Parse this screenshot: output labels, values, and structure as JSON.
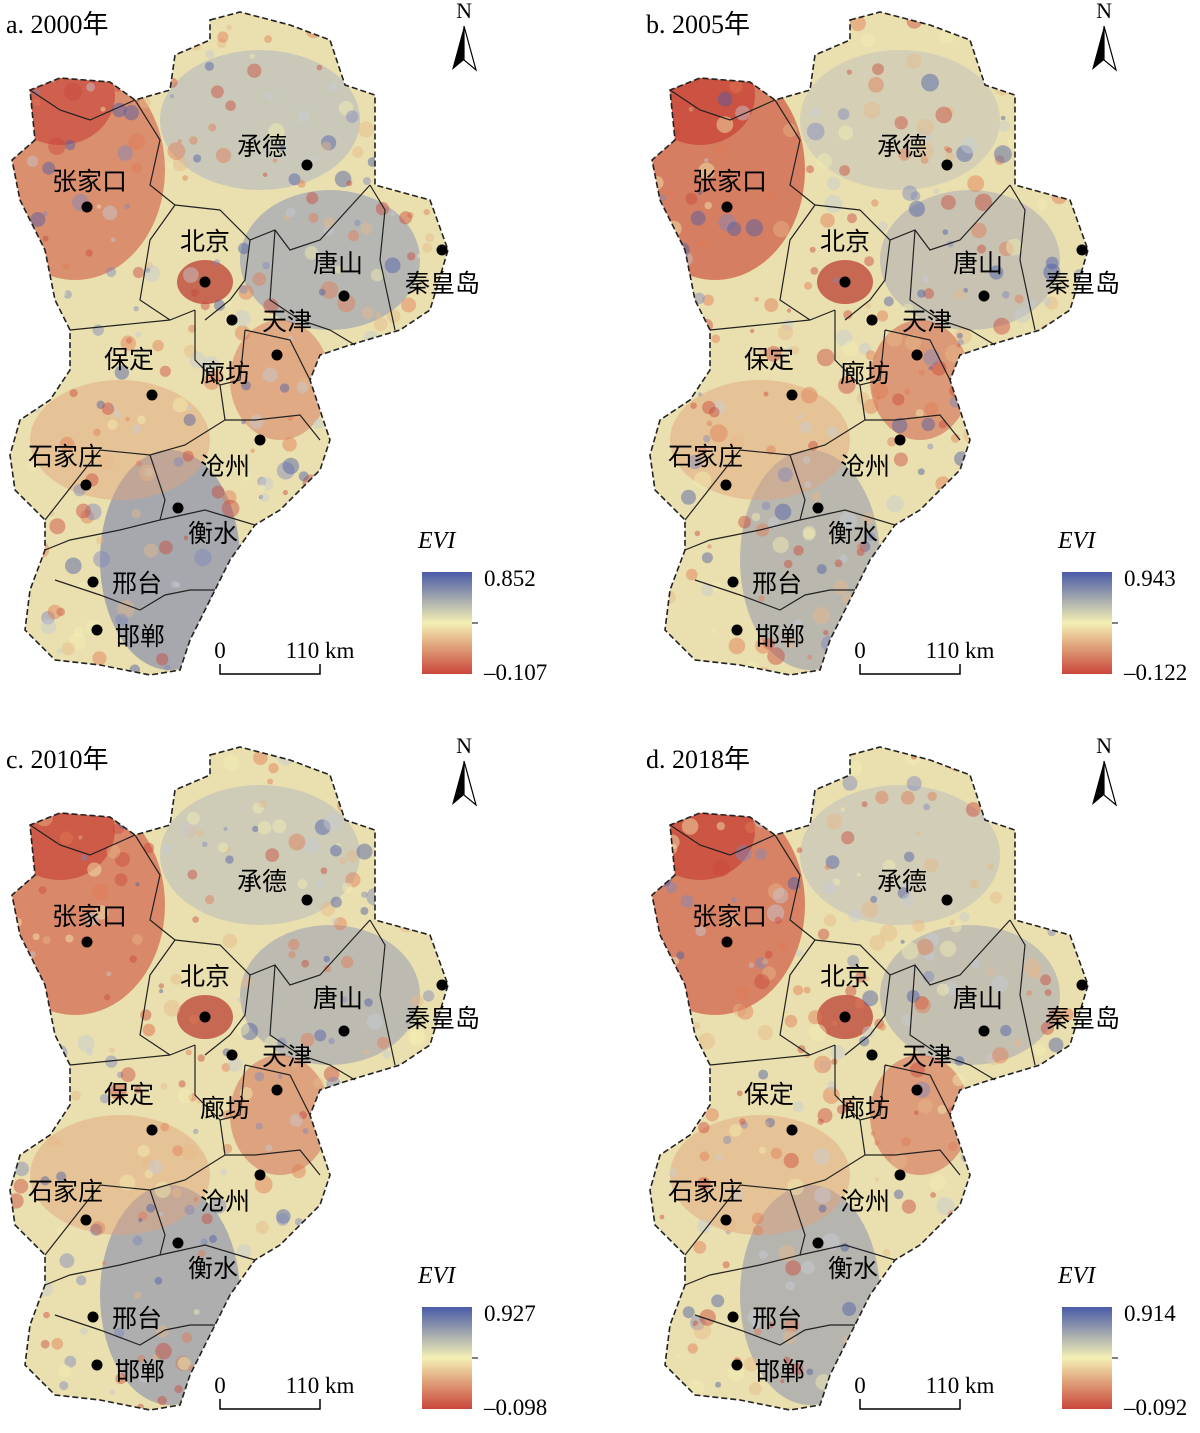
{
  "panels": [
    {
      "title": "a. 2000年",
      "legend_title": "EVI",
      "max": "0.852",
      "min": "–0.107",
      "scale_zero": "0",
      "scale_end": "110 km",
      "north": "N",
      "cities": [
        "张家口",
        "承德",
        "北京",
        "唐山",
        "秦皇岛",
        "天津",
        "保定",
        "廊坊",
        "石家庄",
        "沧州",
        "衡水",
        "邢台",
        "邯郸"
      ]
    },
    {
      "title": "b. 2005年",
      "legend_title": "EVI",
      "max": "0.943",
      "min": "–0.122",
      "scale_zero": "0",
      "scale_end": "110 km",
      "north": "N",
      "cities": [
        "张家口",
        "承德",
        "北京",
        "唐山",
        "秦皇岛",
        "天津",
        "保定",
        "廊坊",
        "石家庄",
        "沧州",
        "衡水",
        "邢台",
        "邯郸"
      ]
    },
    {
      "title": "c. 2010年",
      "legend_title": "EVI",
      "max": "0.927",
      "min": "–0.098",
      "scale_zero": "0",
      "scale_end": "110 km",
      "north": "N",
      "cities": [
        "张家口",
        "承德",
        "北京",
        "唐山",
        "秦皇岛",
        "天津",
        "保定",
        "廊坊",
        "石家庄",
        "沧州",
        "衡水",
        "邢台",
        "邯郸"
      ]
    },
    {
      "title": "d. 2018年",
      "legend_title": "EVI",
      "max": "0.914",
      "min": "–0.092",
      "scale_zero": "0",
      "scale_end": "110 km",
      "north": "N",
      "cities": [
        "张家口",
        "承德",
        "北京",
        "唐山",
        "秦皇岛",
        "天津",
        "保定",
        "廊坊",
        "石家庄",
        "沧州",
        "衡水",
        "邢台",
        "邯郸"
      ]
    }
  ],
  "colors": {
    "high": "#4a5ba8",
    "mid": "#f4f0b4",
    "low": "#c9463a"
  }
}
